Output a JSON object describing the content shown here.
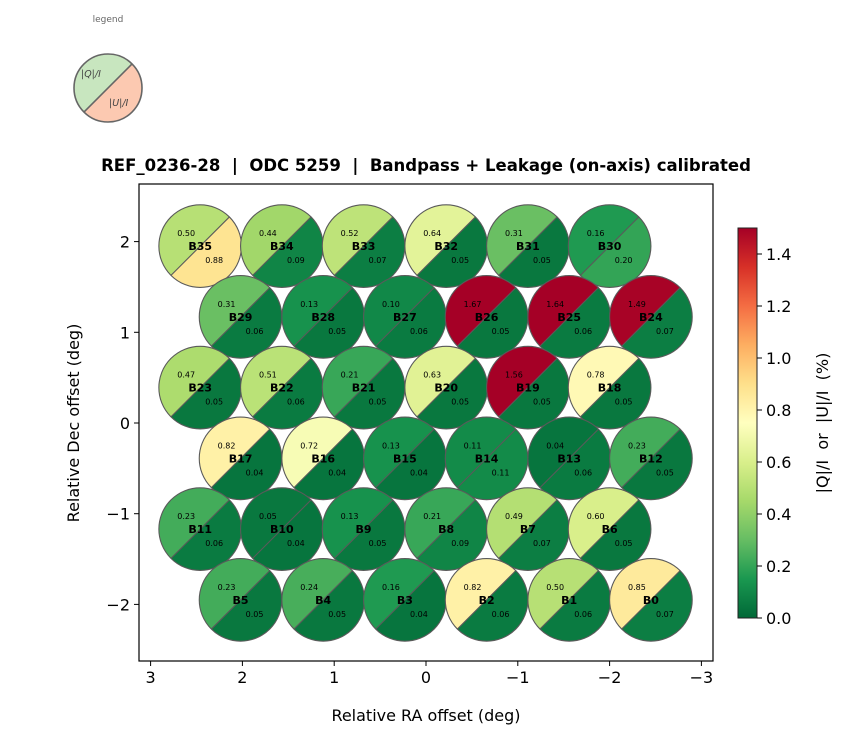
{
  "chart_data": {
    "type": "scatter",
    "title": "REF_0236-28  |  ODC 5259  |  Bandpass + Leakage (on-axis) calibrated",
    "xlabel": "Relative RA offset (deg)",
    "ylabel": "Relative Dec offset (deg)",
    "xlim": [
      3.15,
      -3.15
    ],
    "ylim": [
      -2.6,
      2.6
    ],
    "xticks": [
      3,
      2,
      1,
      0,
      -1,
      -2,
      -3
    ],
    "xtick_labels": [
      "3",
      "2",
      "1",
      "0",
      "−1",
      "−2",
      "−3"
    ],
    "yticks": [
      2,
      1,
      0,
      -1,
      -2
    ],
    "ytick_labels": [
      "2",
      "1",
      "0",
      "−1",
      "−2"
    ],
    "grid": false,
    "beam_radius_deg": 0.45,
    "colorbar": {
      "label": "|Q|/I  or  |U|/I  (%)",
      "range": [
        0.0,
        1.5
      ],
      "ticks": [
        0.0,
        0.2,
        0.4,
        0.6,
        0.8,
        1.0,
        1.2,
        1.4
      ],
      "tick_labels": [
        "0.0",
        "0.2",
        "0.4",
        "0.6",
        "0.8",
        "1.0",
        "1.2",
        "1.4"
      ],
      "colormap": "RdYlGn_r"
    },
    "legend": {
      "title": "legend",
      "q_label": "|Q|/I",
      "u_label": "|U|/I",
      "q_color": "#c8e6bf",
      "u_color": "#fcc9b1"
    },
    "beams": [
      {
        "name": "B35",
        "ra": 2.46,
        "dec": 1.95,
        "q": "0.50",
        "u": "0.88"
      },
      {
        "name": "B34",
        "ra": 1.57,
        "dec": 1.95,
        "q": "0.44",
        "u": "0.09"
      },
      {
        "name": "B33",
        "ra": 0.68,
        "dec": 1.95,
        "q": "0.52",
        "u": "0.07"
      },
      {
        "name": "B32",
        "ra": -0.22,
        "dec": 1.95,
        "q": "0.64",
        "u": "0.05"
      },
      {
        "name": "B31",
        "ra": -1.11,
        "dec": 1.95,
        "q": "0.31",
        "u": "0.05"
      },
      {
        "name": "B30",
        "ra": -2.0,
        "dec": 1.95,
        "q": "0.16",
        "u": "0.20"
      },
      {
        "name": "B29",
        "ra": 2.02,
        "dec": 1.17,
        "q": "0.31",
        "u": "0.06"
      },
      {
        "name": "B28",
        "ra": 1.12,
        "dec": 1.17,
        "q": "0.13",
        "u": "0.05"
      },
      {
        "name": "B27",
        "ra": 0.23,
        "dec": 1.17,
        "q": "0.10",
        "u": "0.06"
      },
      {
        "name": "B26",
        "ra": -0.66,
        "dec": 1.17,
        "q": "1.67",
        "u": "0.05"
      },
      {
        "name": "B25",
        "ra": -1.56,
        "dec": 1.17,
        "q": "1.64",
        "u": "0.06"
      },
      {
        "name": "B24",
        "ra": -2.45,
        "dec": 1.17,
        "q": "1.49",
        "u": "0.07"
      },
      {
        "name": "B23",
        "ra": 2.46,
        "dec": 0.39,
        "q": "0.47",
        "u": "0.05"
      },
      {
        "name": "B22",
        "ra": 1.57,
        "dec": 0.39,
        "q": "0.51",
        "u": "0.06"
      },
      {
        "name": "B21",
        "ra": 0.68,
        "dec": 0.39,
        "q": "0.21",
        "u": "0.05"
      },
      {
        "name": "B20",
        "ra": -0.22,
        "dec": 0.39,
        "q": "0.63",
        "u": "0.05"
      },
      {
        "name": "B19",
        "ra": -1.11,
        "dec": 0.39,
        "q": "1.56",
        "u": "0.05"
      },
      {
        "name": "B18",
        "ra": -2.0,
        "dec": 0.39,
        "q": "0.78",
        "u": "0.05"
      },
      {
        "name": "B17",
        "ra": 2.02,
        "dec": -0.39,
        "q": "0.82",
        "u": "0.04"
      },
      {
        "name": "B16",
        "ra": 1.12,
        "dec": -0.39,
        "q": "0.72",
        "u": "0.04"
      },
      {
        "name": "B15",
        "ra": 0.23,
        "dec": -0.39,
        "q": "0.13",
        "u": "0.04"
      },
      {
        "name": "B14",
        "ra": -0.66,
        "dec": -0.39,
        "q": "0.11",
        "u": "0.11"
      },
      {
        "name": "B13",
        "ra": -1.56,
        "dec": -0.39,
        "q": "0.04",
        "u": "0.06"
      },
      {
        "name": "B12",
        "ra": -2.45,
        "dec": -0.39,
        "q": "0.23",
        "u": "0.05"
      },
      {
        "name": "B11",
        "ra": 2.46,
        "dec": -1.17,
        "q": "0.23",
        "u": "0.06"
      },
      {
        "name": "B10",
        "ra": 1.57,
        "dec": -1.17,
        "q": "0.05",
        "u": "0.04"
      },
      {
        "name": "B9",
        "ra": 0.68,
        "dec": -1.17,
        "q": "0.13",
        "u": "0.05"
      },
      {
        "name": "B8",
        "ra": -0.22,
        "dec": -1.17,
        "q": "0.21",
        "u": "0.09"
      },
      {
        "name": "B7",
        "ra": -1.11,
        "dec": -1.17,
        "q": "0.49",
        "u": "0.07"
      },
      {
        "name": "B6",
        "ra": -2.0,
        "dec": -1.17,
        "q": "0.60",
        "u": "0.05"
      },
      {
        "name": "B5",
        "ra": 2.02,
        "dec": -1.95,
        "q": "0.23",
        "u": "0.05"
      },
      {
        "name": "B4",
        "ra": 1.12,
        "dec": -1.95,
        "q": "0.24",
        "u": "0.05"
      },
      {
        "name": "B3",
        "ra": 0.23,
        "dec": -1.95,
        "q": "0.16",
        "u": "0.04"
      },
      {
        "name": "B2",
        "ra": -0.66,
        "dec": -1.95,
        "q": "0.82",
        "u": "0.06"
      },
      {
        "name": "B1",
        "ra": -1.56,
        "dec": -1.95,
        "q": "0.50",
        "u": "0.06"
      },
      {
        "name": "B0",
        "ra": -2.45,
        "dec": -1.95,
        "q": "0.85",
        "u": "0.07"
      }
    ]
  }
}
